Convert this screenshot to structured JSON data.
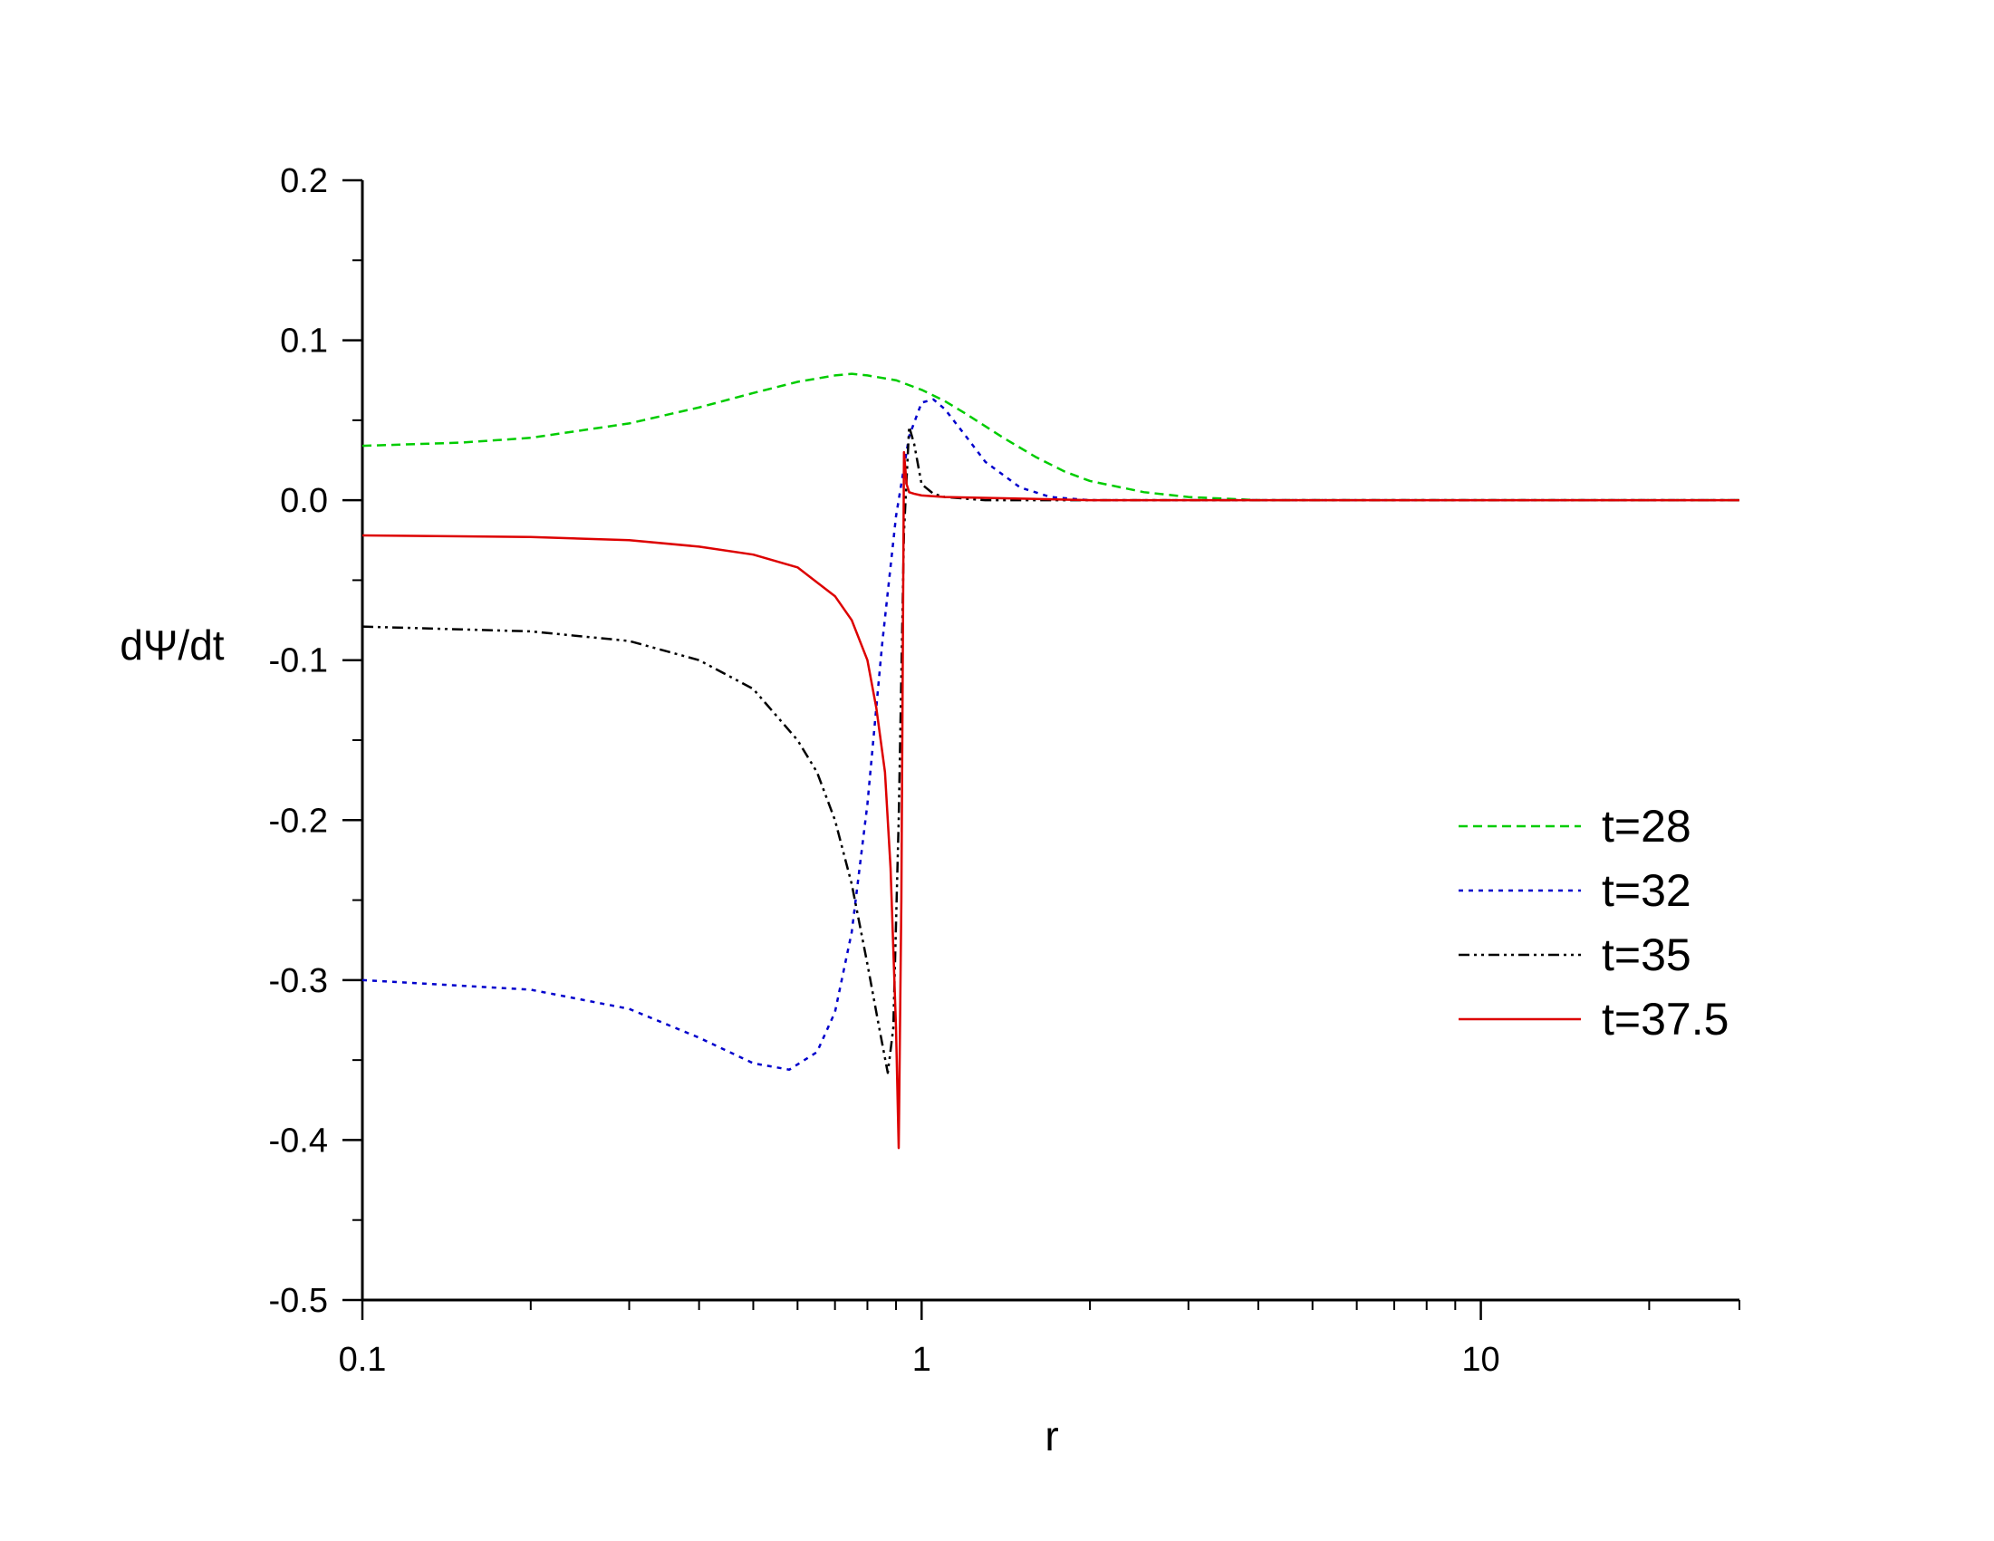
{
  "chart_data": {
    "type": "line",
    "title": "",
    "xlabel": "r",
    "ylabel": "dΨ/dt",
    "x_scale": "log",
    "xlim": [
      0.1,
      29
    ],
    "ylim": [
      -0.5,
      0.2
    ],
    "x_ticks": [
      0.1,
      1,
      10
    ],
    "x_tick_labels": [
      "0.1",
      "1",
      "10"
    ],
    "y_ticks": [
      0.2,
      0.1,
      0.0,
      -0.1,
      -0.2,
      -0.3,
      -0.4,
      -0.5
    ],
    "y_tick_labels": [
      "0.2",
      "0.1",
      "0.0",
      "-0.1",
      "-0.2",
      "-0.3",
      "-0.4",
      "-0.5"
    ],
    "grid": false,
    "legend_position": "right",
    "series": [
      {
        "name": "t=28",
        "color": "#00cc00",
        "dash": "dashed",
        "x": [
          0.1,
          0.15,
          0.2,
          0.3,
          0.4,
          0.5,
          0.6,
          0.7,
          0.75,
          0.8,
          0.9,
          1.0,
          1.1,
          1.2,
          1.4,
          1.6,
          1.8,
          2.0,
          2.5,
          3.0,
          4.0,
          5.0,
          10,
          29
        ],
        "y": [
          0.034,
          0.036,
          0.039,
          0.048,
          0.058,
          0.067,
          0.074,
          0.078,
          0.079,
          0.078,
          0.075,
          0.069,
          0.062,
          0.054,
          0.039,
          0.027,
          0.018,
          0.012,
          0.005,
          0.002,
          0.0,
          0.0,
          0.0,
          0.0
        ]
      },
      {
        "name": "t=32",
        "color": "#0000cc",
        "dash": "dotted",
        "x": [
          0.1,
          0.2,
          0.3,
          0.4,
          0.5,
          0.58,
          0.65,
          0.7,
          0.75,
          0.8,
          0.85,
          0.9,
          0.95,
          1.0,
          1.05,
          1.1,
          1.2,
          1.3,
          1.5,
          1.7,
          2.0,
          3.0,
          29
        ],
        "y": [
          -0.3,
          -0.306,
          -0.318,
          -0.336,
          -0.352,
          -0.356,
          -0.345,
          -0.32,
          -0.27,
          -0.19,
          -0.09,
          -0.01,
          0.04,
          0.061,
          0.063,
          0.057,
          0.04,
          0.024,
          0.008,
          0.002,
          0.0,
          0.0,
          0.0
        ]
      },
      {
        "name": "t=35",
        "color": "#000000",
        "dash": "dashdotdot",
        "x": [
          0.1,
          0.2,
          0.3,
          0.4,
          0.5,
          0.6,
          0.65,
          0.7,
          0.75,
          0.8,
          0.84,
          0.87,
          0.89,
          0.91,
          0.93,
          0.95,
          0.97,
          1.0,
          1.05,
          1.1,
          1.3,
          2.0,
          29
        ],
        "y": [
          -0.079,
          -0.082,
          -0.088,
          -0.1,
          -0.118,
          -0.15,
          -0.17,
          -0.2,
          -0.24,
          -0.29,
          -0.33,
          -0.358,
          -0.33,
          -0.2,
          -0.02,
          0.046,
          0.035,
          0.01,
          0.004,
          0.002,
          0.0,
          0.0,
          0.0
        ]
      },
      {
        "name": "t=37.5",
        "color": "#dd0000",
        "dash": "solid",
        "x": [
          0.1,
          0.2,
          0.3,
          0.4,
          0.5,
          0.6,
          0.7,
          0.75,
          0.8,
          0.83,
          0.86,
          0.88,
          0.9,
          0.91,
          0.92,
          0.93,
          0.94,
          0.95,
          0.97,
          1.0,
          1.1,
          1.5,
          2.0,
          29
        ],
        "y": [
          -0.022,
          -0.023,
          -0.025,
          -0.029,
          -0.034,
          -0.042,
          -0.06,
          -0.075,
          -0.1,
          -0.13,
          -0.17,
          -0.23,
          -0.33,
          -0.405,
          -0.25,
          0.03,
          0.01,
          0.005,
          0.004,
          0.003,
          0.002,
          0.001,
          0.0,
          0.0
        ]
      }
    ]
  }
}
